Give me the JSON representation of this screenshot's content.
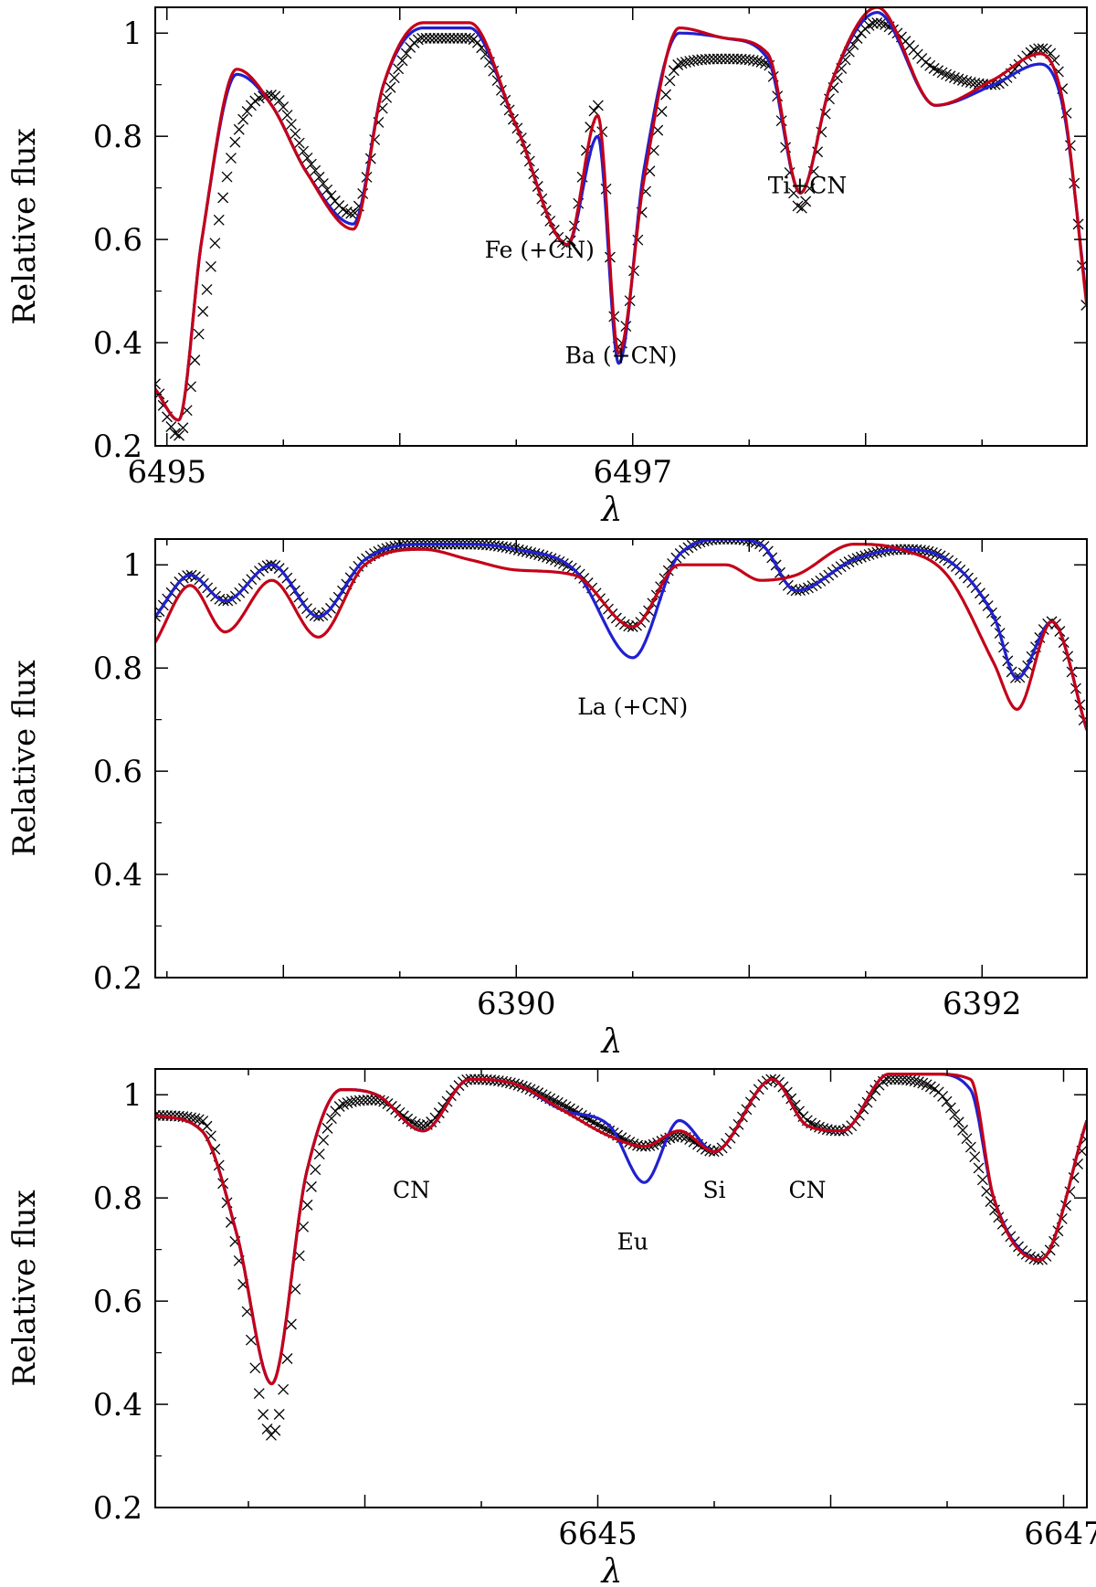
{
  "chart_data": [
    {
      "type": "line",
      "xlabel": "λ",
      "ylabel": "Relative flux",
      "xlim": [
        6494.95,
        6498.95
      ],
      "ylim": [
        0.2,
        1.05
      ],
      "xticks": [
        6495,
        6497
      ],
      "yticks": [
        0.2,
        0.4,
        0.6,
        0.8,
        1
      ],
      "yticklabels": [
        "0.2",
        "0.4",
        "0.6",
        "0.8",
        "1"
      ],
      "annotations": [
        {
          "text": "Fe (+CN)",
          "x": 6496.6,
          "y": 0.565
        },
        {
          "text": "Ba (+CN)",
          "x": 6496.95,
          "y": 0.36
        },
        {
          "text": "Ti+CN",
          "x": 6497.75,
          "y": 0.69
        }
      ],
      "series": [
        {
          "role": "observed",
          "color": "#000000",
          "marker": "x",
          "x": [
            6494.95,
            6495.05,
            6495.15,
            6495.3,
            6495.45,
            6495.6,
            6495.8,
            6495.93,
            6496.1,
            6496.3,
            6496.5,
            6496.72,
            6496.85,
            6496.94,
            6497.05,
            6497.2,
            6497.4,
            6497.58,
            6497.72,
            6497.85,
            6498.05,
            6498.3,
            6498.55,
            6498.75,
            6498.85,
            6498.95
          ],
          "y": [
            0.32,
            0.22,
            0.45,
            0.8,
            0.88,
            0.76,
            0.65,
            0.86,
            0.99,
            0.99,
            0.82,
            0.59,
            0.86,
            0.39,
            0.68,
            0.94,
            0.95,
            0.94,
            0.66,
            0.88,
            1.02,
            0.93,
            0.9,
            0.97,
            0.88,
            0.46
          ]
        },
        {
          "role": "model",
          "color": "#2020d0",
          "x": [
            6494.95,
            6495.05,
            6495.15,
            6495.3,
            6495.45,
            6495.6,
            6495.8,
            6495.93,
            6496.1,
            6496.3,
            6496.5,
            6496.72,
            6496.85,
            6496.94,
            6497.05,
            6497.2,
            6497.4,
            6497.58,
            6497.72,
            6497.85,
            6498.05,
            6498.3,
            6498.55,
            6498.75,
            6498.85,
            6498.95
          ],
          "y": [
            0.31,
            0.25,
            0.6,
            0.92,
            0.86,
            0.73,
            0.63,
            0.9,
            1.01,
            1.01,
            0.82,
            0.59,
            0.8,
            0.36,
            0.74,
            1.0,
            0.99,
            0.95,
            0.69,
            0.9,
            1.04,
            0.86,
            0.9,
            0.94,
            0.85,
            0.48
          ]
        },
        {
          "role": "model",
          "color": "#c40018",
          "x": [
            6494.95,
            6495.05,
            6495.15,
            6495.3,
            6495.45,
            6495.6,
            6495.8,
            6495.93,
            6496.1,
            6496.3,
            6496.5,
            6496.72,
            6496.85,
            6496.94,
            6497.05,
            6497.2,
            6497.4,
            6497.58,
            6497.72,
            6497.85,
            6498.05,
            6498.3,
            6498.55,
            6498.75,
            6498.85,
            6498.95
          ],
          "y": [
            0.31,
            0.25,
            0.6,
            0.93,
            0.86,
            0.73,
            0.62,
            0.9,
            1.02,
            1.02,
            0.82,
            0.59,
            0.84,
            0.38,
            0.72,
            1.01,
            0.99,
            0.96,
            0.69,
            0.9,
            1.05,
            0.86,
            0.91,
            0.96,
            0.86,
            0.47
          ]
        }
      ]
    },
    {
      "type": "line",
      "xlabel": "λ",
      "ylabel": "Relative flux",
      "xlim": [
        6388.45,
        6392.45
      ],
      "ylim": [
        0.2,
        1.05
      ],
      "xticks": [
        6390,
        6392
      ],
      "yticks": [
        0.2,
        0.4,
        0.6,
        0.8,
        1
      ],
      "yticklabels": [
        "0.2",
        "0.4",
        "0.6",
        "0.8",
        "1"
      ],
      "annotations": [
        {
          "text": "La (+CN)",
          "x": 6390.5,
          "y": 0.71
        }
      ],
      "series": [
        {
          "role": "observed",
          "color": "#000000",
          "marker": "x",
          "x": [
            6388.45,
            6388.6,
            6388.75,
            6388.95,
            6389.15,
            6389.35,
            6389.6,
            6389.8,
            6390.0,
            6390.25,
            6390.5,
            6390.7,
            6390.9,
            6391.05,
            6391.2,
            6391.45,
            6391.65,
            6391.85,
            6392.05,
            6392.15,
            6392.3,
            6392.45
          ],
          "y": [
            0.9,
            0.98,
            0.93,
            1.0,
            0.9,
            1.01,
            1.04,
            1.04,
            1.03,
            0.99,
            0.88,
            1.02,
            1.05,
            1.04,
            0.95,
            1.01,
            1.03,
            1.01,
            0.9,
            0.78,
            0.89,
            0.68
          ]
        },
        {
          "role": "model",
          "color": "#2020d0",
          "x": [
            6388.45,
            6388.6,
            6388.75,
            6388.95,
            6389.15,
            6389.35,
            6389.6,
            6389.8,
            6390.0,
            6390.25,
            6390.5,
            6390.7,
            6390.9,
            6391.05,
            6391.2,
            6391.45,
            6391.65,
            6391.85,
            6392.05,
            6392.15,
            6392.3,
            6392.45
          ],
          "y": [
            0.9,
            0.98,
            0.93,
            1.0,
            0.9,
            1.01,
            1.04,
            1.04,
            1.03,
            0.99,
            0.82,
            1.02,
            1.05,
            1.04,
            0.95,
            1.01,
            1.03,
            1.01,
            0.9,
            0.78,
            0.89,
            0.68
          ]
        },
        {
          "role": "model",
          "color": "#c40018",
          "x": [
            6388.45,
            6388.6,
            6388.75,
            6388.95,
            6389.15,
            6389.35,
            6389.6,
            6389.8,
            6390.0,
            6390.25,
            6390.5,
            6390.7,
            6390.9,
            6391.05,
            6391.2,
            6391.45,
            6391.65,
            6391.85,
            6392.05,
            6392.15,
            6392.3,
            6392.45
          ],
          "y": [
            0.85,
            0.96,
            0.87,
            0.97,
            0.86,
            1.0,
            1.03,
            1.01,
            0.99,
            0.98,
            0.88,
            1.0,
            1.0,
            0.97,
            0.98,
            1.04,
            1.03,
            0.98,
            0.81,
            0.72,
            0.89,
            0.68
          ]
        }
      ]
    },
    {
      "type": "line",
      "xlabel": "λ",
      "ylabel": "Relative flux",
      "xlim": [
        6643.1,
        6647.1
      ],
      "ylim": [
        0.2,
        1.05
      ],
      "xticks": [
        6645,
        6647
      ],
      "yticks": [
        0.2,
        0.4,
        0.6,
        0.8,
        1
      ],
      "yticklabels": [
        "0.2",
        "0.4",
        "0.6",
        "0.8",
        "1"
      ],
      "annotations": [
        {
          "text": "CN",
          "x": 6644.2,
          "y": 0.8
        },
        {
          "text": "Eu",
          "x": 6645.15,
          "y": 0.7
        },
        {
          "text": "Si",
          "x": 6645.5,
          "y": 0.8
        },
        {
          "text": "CN",
          "x": 6645.9,
          "y": 0.8
        }
      ],
      "series": [
        {
          "role": "observed",
          "color": "#000000",
          "marker": "x",
          "x": [
            6643.1,
            6643.3,
            6643.45,
            6643.6,
            6643.75,
            6643.9,
            6644.05,
            6644.25,
            6644.45,
            6644.65,
            6644.85,
            6645.05,
            6645.2,
            6645.35,
            6645.5,
            6645.75,
            6645.9,
            6646.05,
            6646.25,
            6646.45,
            6646.6,
            6646.7,
            6646.9,
            6647.1
          ],
          "y": [
            0.96,
            0.95,
            0.7,
            0.34,
            0.78,
            0.98,
            0.99,
            0.94,
            1.03,
            1.02,
            0.98,
            0.93,
            0.9,
            0.92,
            0.89,
            1.03,
            0.95,
            0.93,
            1.03,
            1.01,
            0.9,
            0.78,
            0.68,
            0.92
          ]
        },
        {
          "role": "model",
          "color": "#2020d0",
          "x": [
            6643.1,
            6643.3,
            6643.45,
            6643.6,
            6643.75,
            6643.9,
            6644.05,
            6644.25,
            6644.45,
            6644.65,
            6644.85,
            6645.05,
            6645.2,
            6645.35,
            6645.5,
            6645.75,
            6645.9,
            6646.05,
            6646.25,
            6646.45,
            6646.6,
            6646.7,
            6646.9,
            6647.1
          ],
          "y": [
            0.96,
            0.93,
            0.73,
            0.44,
            0.85,
            1.01,
            1.0,
            0.93,
            1.03,
            1.02,
            0.97,
            0.94,
            0.83,
            0.95,
            0.89,
            1.03,
            0.94,
            0.93,
            1.04,
            1.04,
            1.01,
            0.8,
            0.68,
            0.95
          ]
        },
        {
          "role": "model",
          "color": "#c40018",
          "x": [
            6643.1,
            6643.3,
            6643.45,
            6643.6,
            6643.75,
            6643.9,
            6644.05,
            6644.25,
            6644.45,
            6644.65,
            6644.85,
            6645.05,
            6645.2,
            6645.35,
            6645.5,
            6645.75,
            6645.9,
            6646.05,
            6646.25,
            6646.45,
            6646.6,
            6646.7,
            6646.9,
            6647.1
          ],
          "y": [
            0.96,
            0.93,
            0.73,
            0.44,
            0.85,
            1.01,
            1.0,
            0.93,
            1.03,
            1.02,
            0.97,
            0.92,
            0.9,
            0.93,
            0.89,
            1.03,
            0.94,
            0.93,
            1.04,
            1.04,
            1.03,
            0.8,
            0.68,
            0.95
          ]
        }
      ]
    }
  ]
}
